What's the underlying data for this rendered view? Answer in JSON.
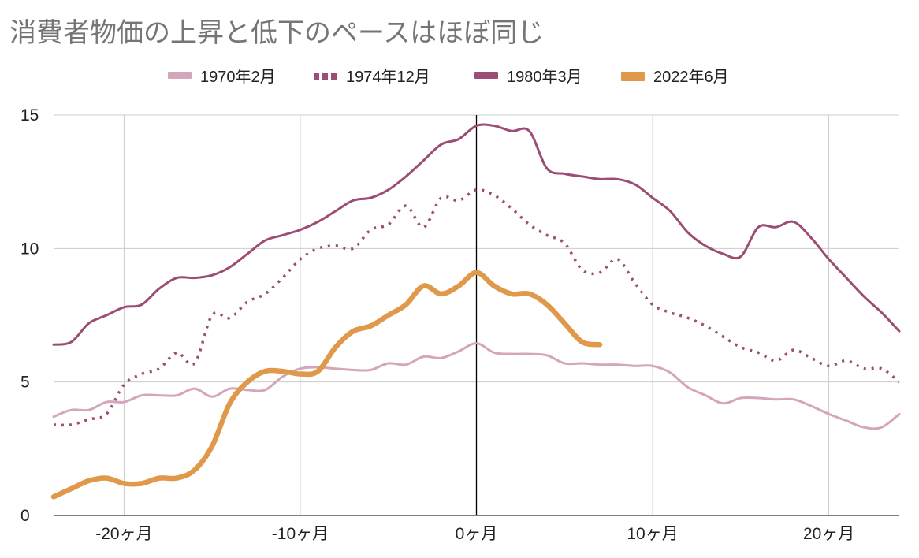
{
  "chart_data": {
    "type": "line",
    "title": "消費者物価の上昇と低下のペースはほぼ同じ",
    "xlabel": "",
    "ylabel": "",
    "xlim": [
      -24,
      24
    ],
    "ylim": [
      0,
      15
    ],
    "x_ticks": [
      -20,
      -10,
      0,
      10,
      20
    ],
    "x_tick_labels": [
      "-20ヶ月",
      "-10ヶ月",
      "0ヶ月",
      "10ヶ月",
      "20ヶ月"
    ],
    "y_ticks": [
      0,
      5,
      10,
      15
    ],
    "y_tick_labels": [
      "0",
      "5",
      "10",
      "15"
    ],
    "grid": true,
    "legend_position": "top",
    "series": [
      {
        "name": "1970年2月",
        "color": "#d4a5bb",
        "style": "solid",
        "x": [
          -24,
          -23,
          -22,
          -21,
          -20,
          -19,
          -18,
          -17,
          -16,
          -15,
          -14,
          -13,
          -12,
          -11,
          -10,
          -9,
          -8,
          -7,
          -6,
          -5,
          -4,
          -3,
          -2,
          -1,
          0,
          1,
          2,
          3,
          4,
          5,
          6,
          7,
          8,
          9,
          10,
          11,
          12,
          13,
          14,
          15,
          16,
          17,
          18,
          19,
          20,
          21,
          22,
          23,
          24
        ],
        "values": [
          3.7,
          3.95,
          3.95,
          4.25,
          4.25,
          4.5,
          4.5,
          4.5,
          4.75,
          4.45,
          4.75,
          4.7,
          4.7,
          5.2,
          5.5,
          5.55,
          5.5,
          5.45,
          5.45,
          5.7,
          5.65,
          5.95,
          5.9,
          6.15,
          6.45,
          6.1,
          6.05,
          6.05,
          6.0,
          5.7,
          5.7,
          5.65,
          5.65,
          5.6,
          5.6,
          5.35,
          4.8,
          4.5,
          4.2,
          4.4,
          4.4,
          4.35,
          4.35,
          4.1,
          3.8,
          3.55,
          3.3,
          3.3,
          3.8
        ]
      },
      {
        "name": "1974年12月",
        "color": "#9c4d76",
        "style": "dotted",
        "x": [
          -24,
          -23,
          -22,
          -21,
          -20,
          -19,
          -18,
          -17,
          -16,
          -15,
          -14,
          -13,
          -12,
          -11,
          -10,
          -9,
          -8,
          -7,
          -6,
          -5,
          -4,
          -3,
          -2,
          -1,
          0,
          1,
          2,
          3,
          4,
          5,
          6,
          7,
          8,
          9,
          10,
          11,
          12,
          13,
          14,
          15,
          16,
          17,
          18,
          19,
          20,
          21,
          22,
          23,
          24
        ],
        "values": [
          3.4,
          3.4,
          3.6,
          3.8,
          4.9,
          5.3,
          5.5,
          6.1,
          5.7,
          7.5,
          7.4,
          8.0,
          8.3,
          8.9,
          9.6,
          10.0,
          10.1,
          10.0,
          10.7,
          10.9,
          11.6,
          10.8,
          11.9,
          11.8,
          12.2,
          12.0,
          11.5,
          10.9,
          10.5,
          10.2,
          9.2,
          9.1,
          9.6,
          8.7,
          7.9,
          7.6,
          7.4,
          7.1,
          6.7,
          6.3,
          6.1,
          5.8,
          6.2,
          5.9,
          5.6,
          5.8,
          5.5,
          5.5,
          5.0
        ]
      },
      {
        "name": "1980年3月",
        "color": "#9c4d76",
        "style": "solid",
        "x": [
          -24,
          -23,
          -22,
          -21,
          -20,
          -19,
          -18,
          -17,
          -16,
          -15,
          -14,
          -13,
          -12,
          -11,
          -10,
          -9,
          -8,
          -7,
          -6,
          -5,
          -4,
          -3,
          -2,
          -1,
          0,
          1,
          2,
          3,
          4,
          5,
          6,
          7,
          8,
          9,
          10,
          11,
          12,
          13,
          14,
          15,
          16,
          17,
          18,
          19,
          20,
          21,
          22,
          23,
          24
        ],
        "values": [
          6.4,
          6.5,
          7.2,
          7.5,
          7.8,
          7.9,
          8.5,
          8.9,
          8.9,
          9.0,
          9.3,
          9.8,
          10.3,
          10.5,
          10.7,
          11.0,
          11.4,
          11.8,
          11.9,
          12.2,
          12.7,
          13.3,
          13.9,
          14.1,
          14.6,
          14.6,
          14.4,
          14.4,
          13.0,
          12.8,
          12.7,
          12.6,
          12.6,
          12.4,
          11.9,
          11.4,
          10.6,
          10.1,
          9.8,
          9.7,
          10.8,
          10.8,
          11.0,
          10.4,
          9.6,
          8.9,
          8.2,
          7.6,
          6.9
        ]
      },
      {
        "name": "2022年6月",
        "color": "#e0994a",
        "style": "solid",
        "x": [
          -24,
          -23,
          -22,
          -21,
          -20,
          -19,
          -18,
          -17,
          -16,
          -15,
          -14,
          -13,
          -12,
          -11,
          -10,
          -9,
          -8,
          -7,
          -6,
          -5,
          -4,
          -3,
          -2,
          -1,
          0,
          1,
          2,
          3,
          4,
          5,
          6,
          7
        ],
        "values": [
          0.7,
          1.0,
          1.3,
          1.4,
          1.2,
          1.2,
          1.4,
          1.4,
          1.7,
          2.6,
          4.2,
          5.0,
          5.4,
          5.4,
          5.3,
          5.4,
          6.3,
          6.9,
          7.1,
          7.5,
          7.9,
          8.6,
          8.3,
          8.6,
          9.1,
          8.6,
          8.3,
          8.3,
          7.9,
          7.2,
          6.5,
          6.4
        ]
      }
    ]
  }
}
